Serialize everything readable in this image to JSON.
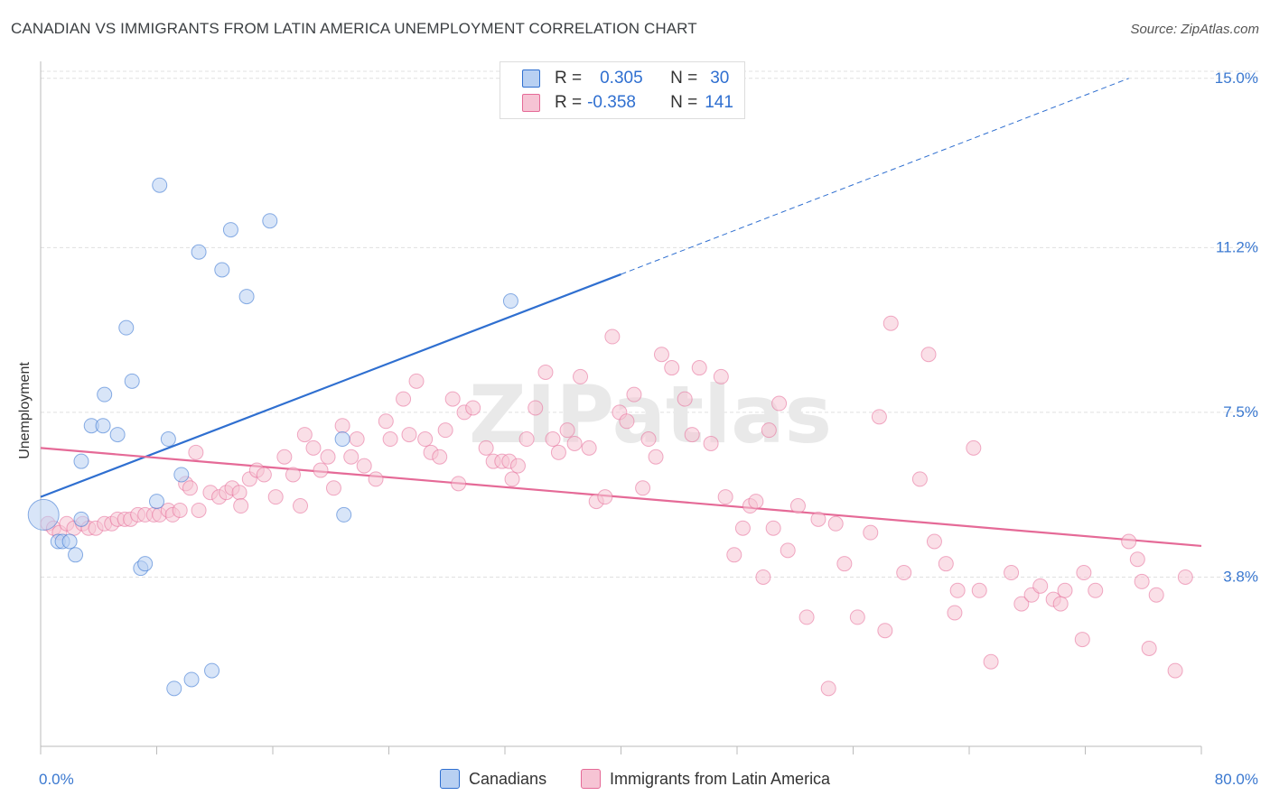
{
  "title": "CANADIAN VS IMMIGRANTS FROM LATIN AMERICA UNEMPLOYMENT CORRELATION CHART",
  "source": "Source: ZipAtlas.com",
  "watermark": "ZIPatlas",
  "colors": {
    "blue": "#2f6fd0",
    "blue_fill": "#b8d0f2",
    "pink": "#e56a97",
    "pink_fill": "#f6c4d4",
    "grid": "#e0e0e0",
    "tick_label": "#3a78d0"
  },
  "legend": {
    "row1": {
      "r_label": "R =",
      "r_value": "0.305",
      "n_label": "N =",
      "n_value": "30"
    },
    "row2": {
      "r_label": "R =",
      "r_value": "-0.358",
      "n_label": "N =",
      "n_value": "141"
    }
  },
  "bottom_legend": {
    "series1": "Canadians",
    "series2": "Immigrants from Latin America"
  },
  "chart_data": {
    "type": "scatter",
    "ylabel": "Unemployment",
    "xlim": [
      0,
      80
    ],
    "ylim": [
      0,
      15.3
    ],
    "y_ticks": [
      {
        "value": 3.8,
        "label": "3.8%"
      },
      {
        "value": 7.5,
        "label": "7.5%"
      },
      {
        "value": 11.2,
        "label": "11.2%"
      },
      {
        "value": 15.0,
        "label": "15.0%"
      }
    ],
    "x_tick_labels": [
      {
        "value": 0,
        "label": "0.0%"
      },
      {
        "value": 80,
        "label": "80.0%"
      }
    ],
    "x_minor_ticks": [
      0,
      8,
      16,
      24,
      32,
      40,
      48,
      56,
      64,
      72,
      80
    ],
    "series": [
      {
        "name": "Canadians",
        "color": "#2f6fd0",
        "trend": {
          "x0": 0,
          "y0": 5.6,
          "x1": 40,
          "y1": 10.6,
          "dashed_to_x": 75,
          "dashed_to_y": 15.0
        },
        "points": [
          [
            0.2,
            5.2
          ],
          [
            1.2,
            4.6
          ],
          [
            1.5,
            4.6
          ],
          [
            2.0,
            4.6
          ],
          [
            2.4,
            4.3
          ],
          [
            2.8,
            6.4
          ],
          [
            2.8,
            5.1
          ],
          [
            3.5,
            7.2
          ],
          [
            4.3,
            7.2
          ],
          [
            4.4,
            7.9
          ],
          [
            5.3,
            7.0
          ],
          [
            5.9,
            9.4
          ],
          [
            6.3,
            8.2
          ],
          [
            6.9,
            4.0
          ],
          [
            7.2,
            4.1
          ],
          [
            8.0,
            5.5
          ],
          [
            8.2,
            12.6
          ],
          [
            8.8,
            6.9
          ],
          [
            9.2,
            1.3
          ],
          [
            9.7,
            6.1
          ],
          [
            10.4,
            1.5
          ],
          [
            10.9,
            11.1
          ],
          [
            11.8,
            1.7
          ],
          [
            12.5,
            10.7
          ],
          [
            13.1,
            11.6
          ],
          [
            14.2,
            10.1
          ],
          [
            15.8,
            11.8
          ],
          [
            20.8,
            6.9
          ],
          [
            20.9,
            5.2
          ],
          [
            32.4,
            10.0
          ]
        ]
      },
      {
        "name": "Immigrants from Latin America",
        "color": "#e56a97",
        "trend": {
          "x0": 0,
          "y0": 6.7,
          "x1": 80,
          "y1": 4.5
        },
        "points": [
          [
            0.5,
            5.0
          ],
          [
            0.9,
            4.9
          ],
          [
            1.3,
            4.8
          ],
          [
            1.8,
            5.0
          ],
          [
            2.3,
            4.9
          ],
          [
            2.9,
            5.0
          ],
          [
            3.3,
            4.9
          ],
          [
            3.8,
            4.9
          ],
          [
            4.4,
            5.0
          ],
          [
            4.9,
            5.0
          ],
          [
            5.3,
            5.1
          ],
          [
            5.8,
            5.1
          ],
          [
            6.2,
            5.1
          ],
          [
            6.7,
            5.2
          ],
          [
            7.2,
            5.2
          ],
          [
            7.8,
            5.2
          ],
          [
            8.2,
            5.2
          ],
          [
            8.8,
            5.3
          ],
          [
            9.1,
            5.2
          ],
          [
            9.6,
            5.3
          ],
          [
            10.0,
            5.9
          ],
          [
            10.3,
            5.8
          ],
          [
            10.7,
            6.6
          ],
          [
            10.9,
            5.3
          ],
          [
            11.7,
            5.7
          ],
          [
            12.3,
            5.6
          ],
          [
            12.8,
            5.7
          ],
          [
            13.2,
            5.8
          ],
          [
            13.7,
            5.7
          ],
          [
            13.8,
            5.4
          ],
          [
            14.4,
            6.0
          ],
          [
            14.9,
            6.2
          ],
          [
            15.4,
            6.1
          ],
          [
            16.2,
            5.6
          ],
          [
            16.8,
            6.5
          ],
          [
            17.4,
            6.1
          ],
          [
            17.9,
            5.4
          ],
          [
            18.2,
            7.0
          ],
          [
            18.8,
            6.7
          ],
          [
            19.3,
            6.2
          ],
          [
            19.8,
            6.5
          ],
          [
            20.2,
            5.8
          ],
          [
            20.8,
            7.2
          ],
          [
            21.4,
            6.5
          ],
          [
            21.8,
            6.9
          ],
          [
            22.3,
            6.3
          ],
          [
            23.1,
            6.0
          ],
          [
            23.8,
            7.3
          ],
          [
            24.1,
            6.9
          ],
          [
            25.0,
            7.8
          ],
          [
            25.4,
            7.0
          ],
          [
            25.9,
            8.2
          ],
          [
            26.5,
            6.9
          ],
          [
            26.9,
            6.6
          ],
          [
            27.5,
            6.5
          ],
          [
            27.9,
            7.1
          ],
          [
            28.4,
            7.8
          ],
          [
            28.8,
            5.9
          ],
          [
            29.2,
            7.5
          ],
          [
            29.8,
            7.6
          ],
          [
            30.7,
            6.7
          ],
          [
            31.2,
            6.4
          ],
          [
            31.8,
            6.4
          ],
          [
            32.3,
            6.4
          ],
          [
            32.5,
            6.0
          ],
          [
            32.9,
            6.3
          ],
          [
            33.5,
            6.9
          ],
          [
            34.1,
            7.6
          ],
          [
            34.8,
            8.4
          ],
          [
            35.3,
            6.9
          ],
          [
            35.7,
            6.6
          ],
          [
            36.3,
            7.1
          ],
          [
            36.8,
            6.8
          ],
          [
            37.2,
            8.3
          ],
          [
            37.8,
            6.7
          ],
          [
            38.3,
            5.5
          ],
          [
            38.9,
            5.6
          ],
          [
            39.4,
            9.2
          ],
          [
            39.9,
            7.5
          ],
          [
            40.4,
            7.3
          ],
          [
            40.9,
            7.9
          ],
          [
            41.5,
            5.8
          ],
          [
            41.9,
            6.9
          ],
          [
            42.4,
            6.5
          ],
          [
            42.8,
            8.8
          ],
          [
            43.5,
            8.5
          ],
          [
            44.4,
            7.8
          ],
          [
            44.9,
            7.0
          ],
          [
            45.4,
            8.5
          ],
          [
            46.2,
            6.8
          ],
          [
            46.9,
            8.3
          ],
          [
            47.2,
            5.6
          ],
          [
            47.8,
            4.3
          ],
          [
            48.4,
            4.9
          ],
          [
            48.9,
            5.4
          ],
          [
            49.3,
            5.5
          ],
          [
            49.8,
            3.8
          ],
          [
            50.2,
            7.1
          ],
          [
            50.5,
            4.9
          ],
          [
            50.9,
            7.7
          ],
          [
            51.5,
            4.4
          ],
          [
            52.2,
            5.4
          ],
          [
            52.8,
            2.9
          ],
          [
            53.6,
            5.1
          ],
          [
            54.3,
            1.3
          ],
          [
            54.8,
            5.0
          ],
          [
            55.4,
            4.1
          ],
          [
            56.3,
            2.9
          ],
          [
            57.2,
            4.8
          ],
          [
            57.8,
            7.4
          ],
          [
            58.2,
            2.6
          ],
          [
            58.6,
            9.5
          ],
          [
            59.5,
            3.9
          ],
          [
            60.6,
            6.0
          ],
          [
            61.2,
            8.8
          ],
          [
            61.6,
            4.6
          ],
          [
            62.4,
            4.1
          ],
          [
            63.0,
            3.0
          ],
          [
            63.2,
            3.5
          ],
          [
            64.3,
            6.7
          ],
          [
            64.7,
            3.5
          ],
          [
            65.5,
            1.9
          ],
          [
            66.9,
            3.9
          ],
          [
            67.6,
            3.2
          ],
          [
            68.3,
            3.4
          ],
          [
            68.9,
            3.6
          ],
          [
            69.8,
            3.3
          ],
          [
            70.3,
            3.2
          ],
          [
            70.6,
            3.5
          ],
          [
            71.8,
            2.4
          ],
          [
            71.9,
            3.9
          ],
          [
            72.7,
            3.5
          ],
          [
            75.0,
            4.6
          ],
          [
            75.6,
            4.2
          ],
          [
            75.9,
            3.7
          ],
          [
            76.4,
            2.2
          ],
          [
            76.9,
            3.4
          ],
          [
            78.2,
            1.7
          ],
          [
            78.9,
            3.8
          ]
        ]
      }
    ]
  }
}
